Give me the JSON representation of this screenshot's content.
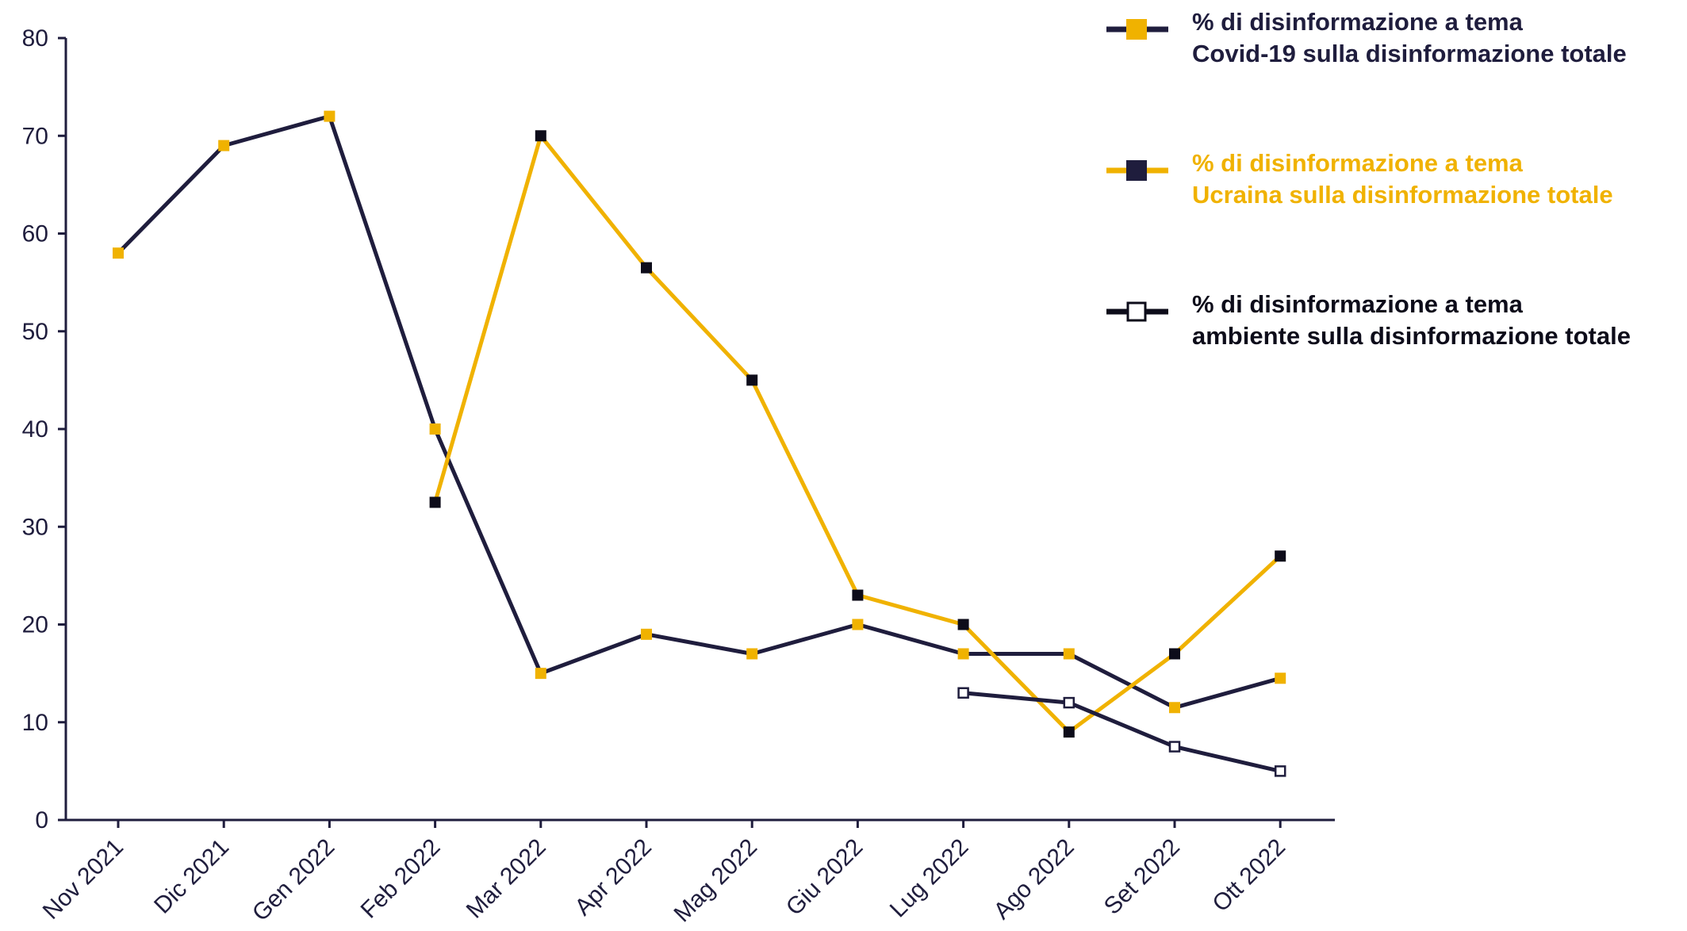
{
  "chart_data": {
    "type": "line",
    "categories": [
      "Nov 2021",
      "Dic 2021",
      "Gen 2022",
      "Feb 2022",
      "Mar 2022",
      "Apr 2022",
      "Mag 2022",
      "Giu 2022",
      "Lug 2022",
      "Ago 2022",
      "Set 2022",
      "Ott 2022"
    ],
    "yticks": [
      0,
      10,
      20,
      30,
      40,
      50,
      60,
      70,
      80
    ],
    "ylim": [
      0,
      80
    ],
    "grid": false,
    "legend_position": "top-right",
    "series": [
      {
        "name": "% di disinformazione a tema\nCovid-19 sulla disinformazione totale",
        "line_color": "#1f1d3d",
        "marker_color": "#f0b200",
        "marker_style": "filled",
        "legend_text_color": "#1f1d3d",
        "values": [
          58,
          69,
          72,
          40,
          15,
          19,
          17,
          20,
          17,
          17,
          11.5,
          14.5
        ]
      },
      {
        "name": "% di disinformazione a tema\nUcraina sulla disinformazione totale",
        "line_color": "#f0b200",
        "marker_color": "#0d0c1a",
        "marker_style": "filled",
        "legend_text_color": "#f0b200",
        "values": [
          null,
          null,
          null,
          32.5,
          70,
          56.5,
          45,
          23,
          20,
          9,
          17,
          27
        ]
      },
      {
        "name": "% di disinformazione a tema\nambiente sulla disinformazione totale",
        "line_color": "#1f1d3d",
        "marker_color": "#ffffff",
        "marker_style": "hollow",
        "legend_text_color": "#0d0c1a",
        "values": [
          null,
          null,
          null,
          null,
          null,
          null,
          null,
          null,
          13,
          12,
          7.5,
          5
        ]
      }
    ]
  }
}
